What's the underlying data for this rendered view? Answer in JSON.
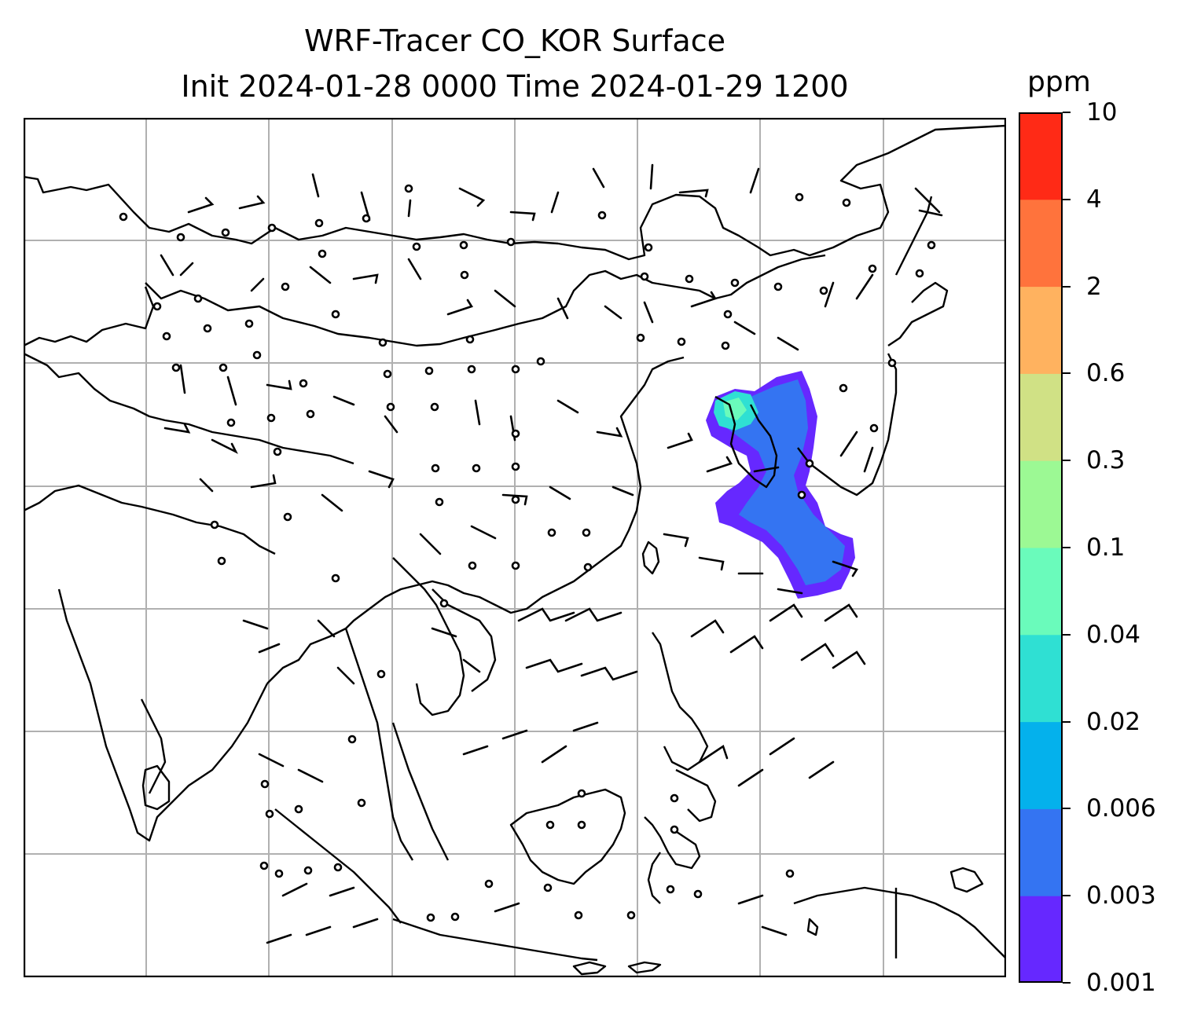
{
  "title": {
    "line1": "WRF-Tracer CO_KOR Surface",
    "line2": "Init 2024-01-28 0000 Time 2024-01-29 1200"
  },
  "colorbar": {
    "unit": "ppm",
    "levels": [
      "0.001",
      "0.003",
      "0.006",
      "0.02",
      "0.04",
      "0.1",
      "0.3",
      "0.6",
      "2",
      "4",
      "10"
    ],
    "colors": [
      "#6628ff",
      "#3474f2",
      "#04b1ec",
      "#2fe0d3",
      "#6afbbb",
      "#9cf994",
      "#d0e185",
      "#ffb25f",
      "#ff733c",
      "#ff2a16"
    ]
  },
  "map": {
    "region": "East and Southeast Asia",
    "gridlines": true,
    "plume_colors": [
      "#6628ff",
      "#3474f2",
      "#2fe0d3",
      "#6afbbb"
    ]
  }
}
